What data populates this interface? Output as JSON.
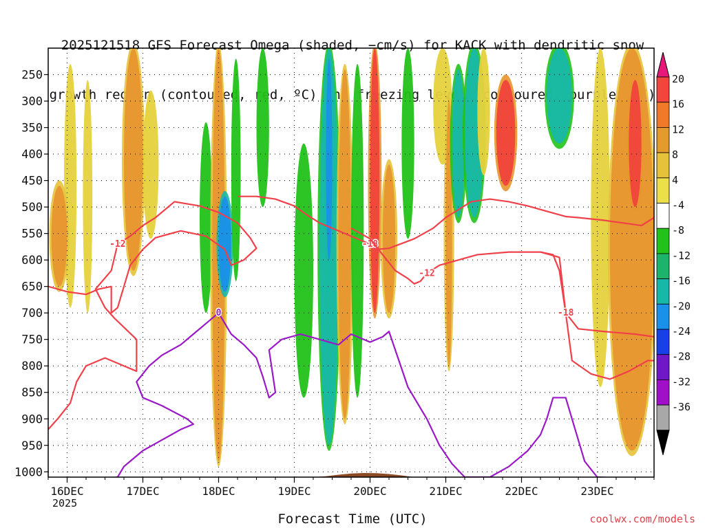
{
  "title": {
    "line1": "2025121518 GFS Forecast Omega (shaded, −cm/s) for KACK with dendritic snow",
    "line2": "growth region (contoured, red, ºC) and freezing level (contoured, purple, ºC)"
  },
  "footer": {
    "x_title": "Forecast Time (UTC)",
    "credit": "coolwx.com/models",
    "year": "2025"
  },
  "chart_data": {
    "type": "heatmap",
    "model_run": "2025121518",
    "station": "KACK",
    "x_ticks": [
      "16DEC",
      "17DEC",
      "18DEC",
      "19DEC",
      "20DEC",
      "21DEC",
      "22DEC",
      "23DEC"
    ],
    "x_range_hours": [
      -6,
      186
    ],
    "y_ticks": [
      250,
      300,
      350,
      400,
      450,
      500,
      550,
      600,
      650,
      700,
      750,
      800,
      850,
      900,
      950,
      1000
    ],
    "y_range_hPa": [
      200,
      1010
    ],
    "grid": true,
    "colorbar": {
      "labels": [
        20,
        16,
        12,
        8,
        4,
        -4,
        -8,
        -12,
        -16,
        -20,
        -24,
        -28,
        -32,
        -36
      ],
      "colors": [
        "#e8177a",
        "#f4453c",
        "#f07a2a",
        "#e39b2e",
        "#e6c23a",
        "#ece04a",
        "#ffffff",
        "#22c21a",
        "#1db36a",
        "#18b8a8",
        "#1a90e8",
        "#1840e8",
        "#7018c8",
        "#a010c8",
        "#a8a8a8",
        "#000000"
      ]
    },
    "contours": {
      "dgz_minus12": {
        "label": "-12",
        "color": "#f0404a",
        "points": [
          [
            -6,
            920
          ],
          [
            -3,
            900
          ],
          [
            1,
            870
          ],
          [
            3,
            830
          ],
          [
            6,
            800
          ],
          [
            12,
            785
          ],
          [
            18,
            800
          ],
          [
            22,
            810
          ],
          [
            22,
            750
          ],
          [
            15,
            710
          ],
          [
            12,
            690
          ],
          [
            9,
            655
          ],
          [
            14,
            620
          ],
          [
            16,
            570
          ],
          [
            20,
            555
          ],
          [
            24,
            535
          ],
          [
            28,
            520
          ],
          [
            34,
            490
          ],
          [
            42,
            498
          ],
          [
            48,
            510
          ],
          [
            54,
            530
          ],
          [
            58,
            558
          ],
          [
            60,
            578
          ],
          [
            56,
            600
          ],
          [
            52,
            610
          ],
          [
            50,
            580
          ],
          [
            44,
            555
          ],
          [
            36,
            545
          ],
          [
            28,
            558
          ],
          [
            24,
            580
          ],
          [
            20,
            610
          ],
          [
            18,
            650
          ],
          [
            16,
            690
          ],
          [
            14,
            700
          ],
          [
            14,
            650
          ],
          [
            10,
            655
          ],
          [
            6,
            665
          ],
          [
            0,
            660
          ],
          [
            -6,
            650
          ]
        ]
      },
      "dgz_minus18": {
        "label": "-18",
        "color": "#f0404a",
        "points": [
          [
            54,
            480
          ],
          [
            60,
            480
          ],
          [
            66,
            485
          ],
          [
            72,
            498
          ],
          [
            76,
            515
          ],
          [
            80,
            530
          ],
          [
            86,
            545
          ],
          [
            92,
            560
          ],
          [
            96,
            570
          ],
          [
            98,
            580
          ],
          [
            102,
            578
          ],
          [
            110,
            560
          ],
          [
            116,
            540
          ],
          [
            120,
            520
          ],
          [
            124,
            505
          ],
          [
            128,
            490
          ],
          [
            134,
            485
          ],
          [
            140,
            490
          ],
          [
            146,
            498
          ],
          [
            152,
            508
          ],
          [
            158,
            518
          ],
          [
            162,
            520
          ],
          [
            170,
            525
          ],
          [
            176,
            530
          ],
          [
            182,
            535
          ],
          [
            186,
            520
          ]
        ]
      },
      "dgz_minus12_right": {
        "label": "-12",
        "color": "#f0404a",
        "points": [
          [
            90,
            540
          ],
          [
            96,
            560
          ],
          [
            100,
            590
          ],
          [
            104,
            620
          ],
          [
            108,
            635
          ],
          [
            110,
            645
          ],
          [
            112,
            640
          ],
          [
            114,
            625
          ],
          [
            118,
            610
          ],
          [
            124,
            600
          ],
          [
            130,
            590
          ],
          [
            140,
            585
          ],
          [
            150,
            585
          ],
          [
            156,
            595
          ],
          [
            158,
            700
          ],
          [
            160,
            790
          ],
          [
            166,
            815
          ],
          [
            172,
            825
          ],
          [
            178,
            810
          ],
          [
            184,
            790
          ],
          [
            186,
            790
          ]
        ]
      },
      "dgz_minus18_lower": {
        "label": "-18",
        "color": "#f0404a",
        "points": [
          [
            150,
            585
          ],
          [
            154,
            590
          ],
          [
            156,
            620
          ],
          [
            158,
            700
          ],
          [
            162,
            730
          ],
          [
            170,
            735
          ],
          [
            176,
            738
          ],
          [
            180,
            740
          ],
          [
            186,
            745
          ]
        ]
      },
      "freezing_level": {
        "label": "0",
        "color": "#9a18c8",
        "points": [
          [
            10,
            1015
          ],
          [
            16,
            1010
          ],
          [
            18,
            990
          ],
          [
            20,
            980
          ],
          [
            24,
            960
          ],
          [
            30,
            940
          ],
          [
            36,
            920
          ],
          [
            40,
            910
          ],
          [
            38,
            900
          ],
          [
            30,
            875
          ],
          [
            24,
            860
          ],
          [
            22,
            830
          ],
          [
            26,
            800
          ],
          [
            30,
            780
          ],
          [
            36,
            760
          ],
          [
            40,
            740
          ],
          [
            44,
            720
          ],
          [
            48,
            700
          ],
          [
            50,
            720
          ],
          [
            52,
            740
          ],
          [
            56,
            760
          ],
          [
            60,
            785
          ],
          [
            62,
            820
          ],
          [
            64,
            860
          ],
          [
            66,
            850
          ],
          [
            64,
            770
          ],
          [
            68,
            750
          ],
          [
            74,
            740
          ],
          [
            80,
            750
          ],
          [
            86,
            760
          ],
          [
            90,
            740
          ],
          [
            92,
            745
          ],
          [
            96,
            755
          ],
          [
            100,
            745
          ],
          [
            102,
            735
          ],
          [
            104,
            770
          ],
          [
            108,
            840
          ],
          [
            114,
            900
          ],
          [
            118,
            950
          ],
          [
            122,
            985
          ],
          [
            126,
            1010
          ],
          [
            134,
            1010
          ],
          [
            140,
            990
          ],
          [
            146,
            960
          ],
          [
            150,
            930
          ],
          [
            152,
            900
          ],
          [
            154,
            860
          ],
          [
            158,
            860
          ],
          [
            160,
            900
          ],
          [
            162,
            940
          ],
          [
            164,
            980
          ],
          [
            168,
            1010
          ],
          [
            176,
            1012
          ]
        ]
      }
    },
    "omega_regions": [
      {
        "x": [
          -1,
          3
        ],
        "p": [
          230,
          690
        ],
        "sign": "rising",
        "level": "yellow"
      },
      {
        "x": [
          -5,
          0
        ],
        "p": [
          460,
          650
        ],
        "sign": "rising",
        "level": "orange"
      },
      {
        "x": [
          5,
          8
        ],
        "p": [
          260,
          700
        ],
        "sign": "rising",
        "level": "yellow"
      },
      {
        "x": [
          18,
          24
        ],
        "p": [
          200,
          620
        ],
        "sign": "rising",
        "level": "orange"
      },
      {
        "x": [
          24,
          29
        ],
        "p": [
          280,
          560
        ],
        "sign": "rising",
        "level": "yellow"
      },
      {
        "x": [
          42,
          46
        ],
        "p": [
          340,
          700
        ],
        "sign": "sinking",
        "level": "green"
      },
      {
        "x": [
          46,
          50
        ],
        "p": [
          200,
          980
        ],
        "sign": "rising",
        "level": "orange"
      },
      {
        "x": [
          48,
          52
        ],
        "p": [
          480,
          660
        ],
        "sign": "sinking",
        "level": "blue"
      },
      {
        "x": [
          52,
          55
        ],
        "p": [
          220,
          640
        ],
        "sign": "sinking",
        "level": "green"
      },
      {
        "x": [
          60,
          64
        ],
        "p": [
          200,
          500
        ],
        "sign": "sinking",
        "level": "green"
      },
      {
        "x": [
          72,
          78
        ],
        "p": [
          380,
          860
        ],
        "sign": "sinking",
        "level": "green"
      },
      {
        "x": [
          80,
          86
        ],
        "p": [
          200,
          950
        ],
        "sign": "sinking",
        "level": "teal"
      },
      {
        "x": [
          82,
          84
        ],
        "p": [
          220,
          600
        ],
        "sign": "sinking",
        "level": "blue"
      },
      {
        "x": [
          86,
          90
        ],
        "p": [
          240,
          900
        ],
        "sign": "rising",
        "level": "orange"
      },
      {
        "x": [
          90,
          94
        ],
        "p": [
          230,
          860
        ],
        "sign": "sinking",
        "level": "green"
      },
      {
        "x": [
          96,
          99
        ],
        "p": [
          200,
          700
        ],
        "sign": "rising",
        "level": "red"
      },
      {
        "x": [
          100,
          104
        ],
        "p": [
          420,
          700
        ],
        "sign": "rising",
        "level": "orange"
      },
      {
        "x": [
          106,
          110
        ],
        "p": [
          200,
          560
        ],
        "sign": "sinking",
        "level": "green"
      },
      {
        "x": [
          116,
          122
        ],
        "p": [
          200,
          420
        ],
        "sign": "rising",
        "level": "yellow"
      },
      {
        "x": [
          120,
          122
        ],
        "p": [
          300,
          800
        ],
        "sign": "rising",
        "level": "orange"
      },
      {
        "x": [
          122,
          126
        ],
        "p": [
          240,
          520
        ],
        "sign": "sinking",
        "level": "teal"
      },
      {
        "x": [
          126,
          132
        ],
        "p": [
          200,
          520
        ],
        "sign": "sinking",
        "level": "teal"
      },
      {
        "x": [
          130,
          134
        ],
        "p": [
          200,
          440
        ],
        "sign": "rising",
        "level": "yellow"
      },
      {
        "x": [
          136,
          142
        ],
        "p": [
          260,
          460
        ],
        "sign": "rising",
        "level": "red"
      },
      {
        "x": [
          152,
          160
        ],
        "p": [
          200,
          380
        ],
        "sign": "sinking",
        "level": "teal"
      },
      {
        "x": [
          166,
          172
        ],
        "p": [
          200,
          840
        ],
        "sign": "rising",
        "level": "yellow"
      },
      {
        "x": [
          172,
          186
        ],
        "p": [
          200,
          960
        ],
        "sign": "rising",
        "level": "orange"
      },
      {
        "x": [
          178,
          182
        ],
        "p": [
          260,
          500
        ],
        "sign": "rising",
        "level": "red"
      }
    ]
  }
}
